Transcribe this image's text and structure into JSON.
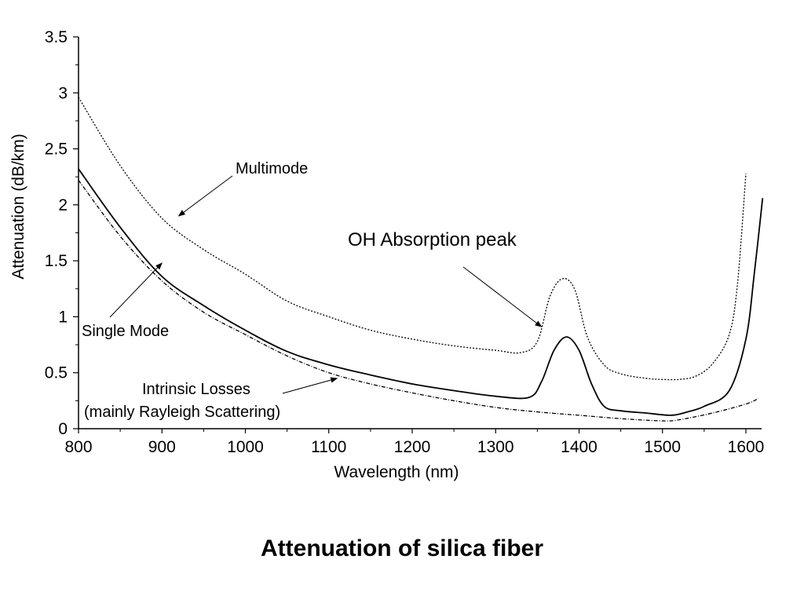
{
  "caption": "Attenuation of silica fiber",
  "chart_data": {
    "type": "line",
    "title": "",
    "xlabel": "Wavelength (nm)",
    "ylabel": "Attenuation (dB/km)",
    "xlim": [
      800,
      1620
    ],
    "ylim": [
      0,
      3.5
    ],
    "x_ticks": [
      "800",
      "900",
      "1000",
      "1100",
      "1200",
      "1300",
      "1400",
      "1500",
      "1600"
    ],
    "y_ticks": [
      "0",
      "0.5",
      "1",
      "1.5",
      "2",
      "2.5",
      "3",
      "3.5"
    ],
    "grid": false,
    "legend": "none",
    "series": [
      {
        "name": "Multimode",
        "style": "dotted",
        "x": [
          800,
          850,
          900,
          950,
          1000,
          1050,
          1100,
          1150,
          1200,
          1250,
          1300,
          1330,
          1350,
          1365,
          1380,
          1395,
          1410,
          1430,
          1450,
          1480,
          1500,
          1520,
          1540,
          1560,
          1580,
          1590,
          1600
        ],
        "y": [
          2.96,
          2.35,
          1.88,
          1.6,
          1.38,
          1.14,
          1.0,
          0.88,
          0.8,
          0.74,
          0.7,
          0.68,
          0.78,
          1.18,
          1.34,
          1.24,
          0.82,
          0.57,
          0.49,
          0.45,
          0.44,
          0.44,
          0.47,
          0.58,
          0.84,
          1.3,
          2.28
        ]
      },
      {
        "name": "Single Mode",
        "style": "solid",
        "x": [
          800,
          850,
          900,
          950,
          1000,
          1050,
          1100,
          1150,
          1200,
          1250,
          1300,
          1340,
          1355,
          1370,
          1385,
          1400,
          1415,
          1430,
          1450,
          1480,
          1510,
          1530,
          1550,
          1580,
          1600,
          1610,
          1620
        ],
        "y": [
          2.32,
          1.8,
          1.36,
          1.1,
          0.88,
          0.69,
          0.57,
          0.48,
          0.4,
          0.34,
          0.29,
          0.28,
          0.42,
          0.7,
          0.82,
          0.7,
          0.4,
          0.2,
          0.16,
          0.14,
          0.12,
          0.15,
          0.2,
          0.34,
          0.8,
          1.38,
          2.06
        ]
      },
      {
        "name": "Intrinsic Losses",
        "style": "dashdot",
        "x": [
          800,
          850,
          900,
          950,
          1000,
          1050,
          1100,
          1150,
          1200,
          1250,
          1300,
          1350,
          1400,
          1450,
          1500,
          1520,
          1560,
          1600,
          1615
        ],
        "y": [
          2.22,
          1.72,
          1.32,
          1.04,
          0.84,
          0.65,
          0.5,
          0.4,
          0.32,
          0.25,
          0.19,
          0.15,
          0.12,
          0.09,
          0.07,
          0.08,
          0.14,
          0.22,
          0.27
        ]
      }
    ],
    "annotations": [
      {
        "text": "Multimode",
        "arrow_to": [
          920,
          1.9
        ]
      },
      {
        "text": "OH Absorption peak",
        "arrow_to": [
          1355,
          0.91
        ]
      },
      {
        "text": "Single Mode",
        "arrow_to": [
          900,
          1.48
        ]
      },
      {
        "text": "Intrinsic Losses",
        "arrow_to": [
          1110,
          0.45
        ]
      },
      {
        "text": "(mainly Rayleigh Scattering)",
        "arrow_to": null
      }
    ]
  }
}
